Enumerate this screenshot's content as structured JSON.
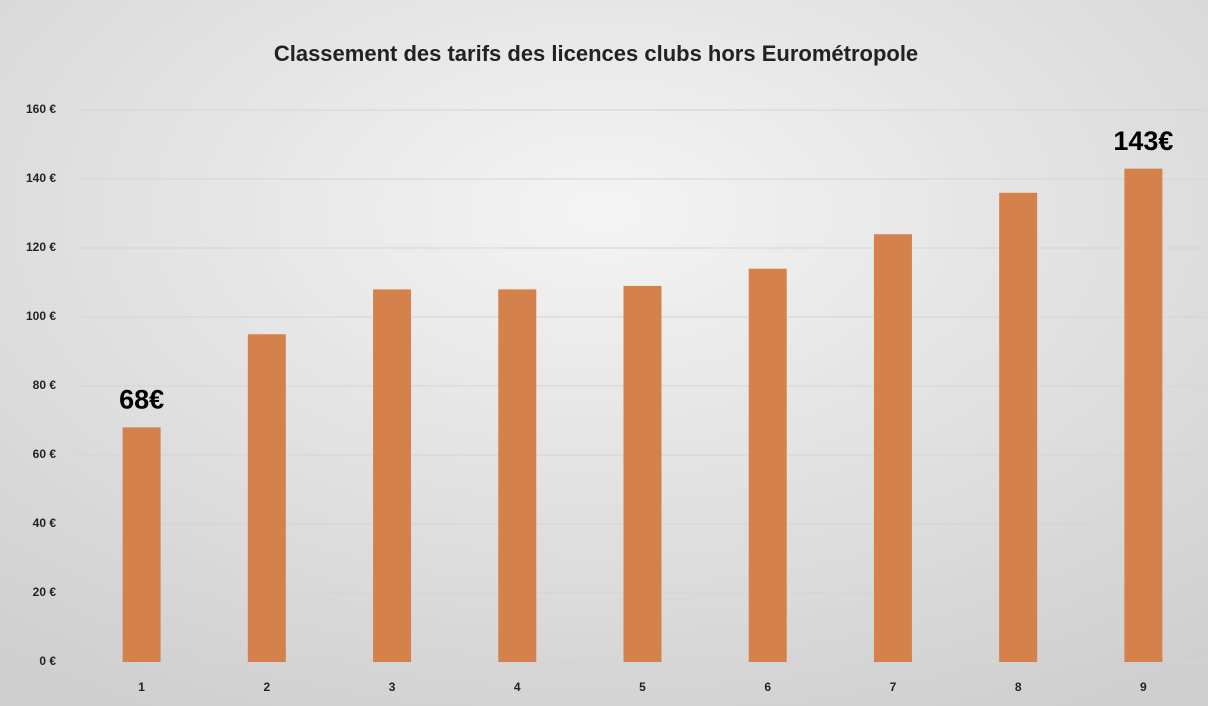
{
  "chart_data": {
    "type": "bar",
    "title": "Classement des tarifs des licences clubs hors Eurométropole",
    "categories": [
      "1",
      "2",
      "3",
      "4",
      "5",
      "6",
      "7",
      "8",
      "9"
    ],
    "values": [
      68,
      95,
      108,
      108,
      109,
      114,
      124,
      136,
      143
    ],
    "value_labels": [
      "68€",
      null,
      null,
      null,
      null,
      null,
      null,
      null,
      "143€"
    ],
    "color": "#d5814c",
    "ylim": [
      0,
      160
    ],
    "yticks": [
      {
        "value": 0,
        "label": "0 €"
      },
      {
        "value": 20,
        "label": "20 €"
      },
      {
        "value": 40,
        "label": "40 €"
      },
      {
        "value": 60,
        "label": "60 €"
      },
      {
        "value": 80,
        "label": "80 €"
      },
      {
        "value": 100,
        "label": "100 €"
      },
      {
        "value": 120,
        "label": "120 €"
      },
      {
        "value": 140,
        "label": "140 €"
      },
      {
        "value": 160,
        "label": "160 €"
      }
    ],
    "grid": true
  }
}
